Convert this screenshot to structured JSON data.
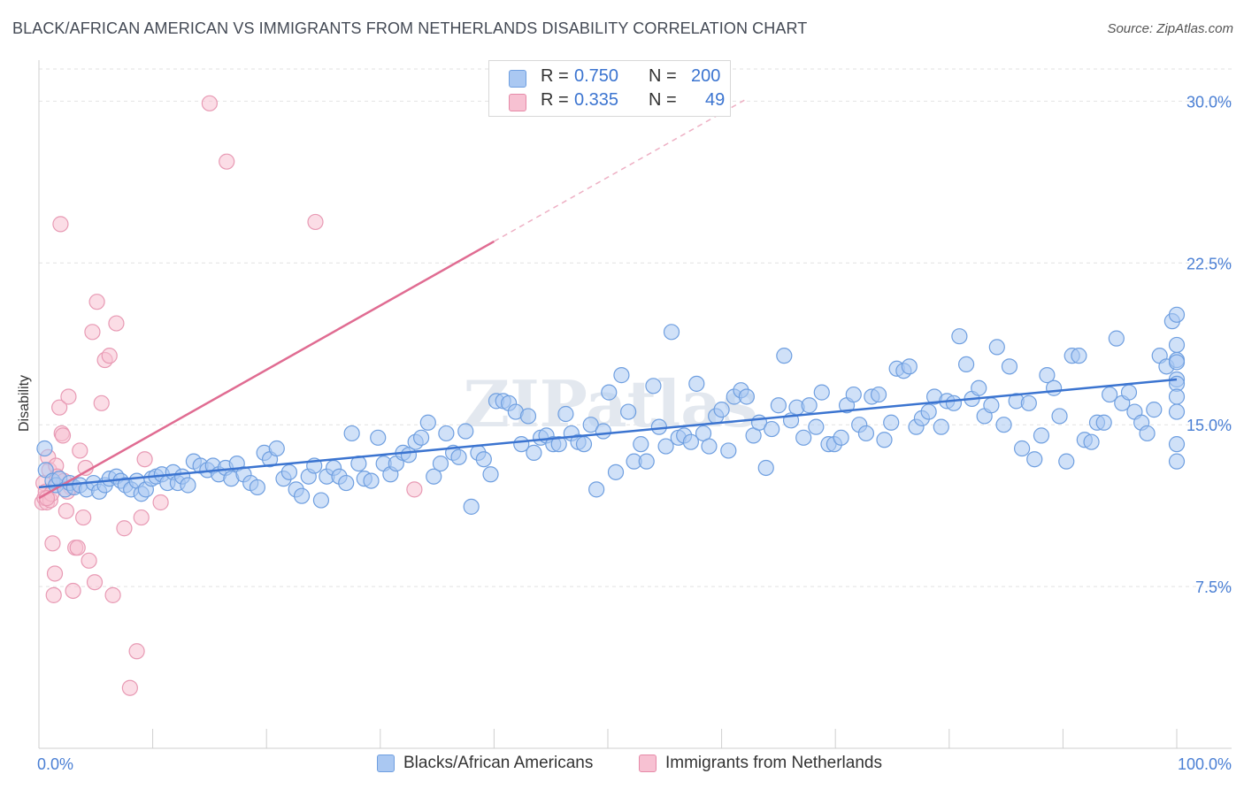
{
  "header": {
    "title": "BLACK/AFRICAN AMERICAN VS IMMIGRANTS FROM NETHERLANDS DISABILITY CORRELATION CHART",
    "source": "Source: ZipAtlas.com"
  },
  "legend": {
    "rows": [
      {
        "r_label": "R =",
        "r_value": "0.750",
        "n_label": "N =",
        "n_value": "200",
        "color": "#aac8f2",
        "border": "#6f9fe0"
      },
      {
        "r_label": "R =",
        "r_value": "0.335",
        "n_label": "N =",
        "n_value": "49",
        "color": "#f7c1d2",
        "border": "#e68aa8"
      }
    ]
  },
  "bottom_legend": [
    {
      "label": "Blacks/African Americans",
      "color": "#aac8f2",
      "border": "#6f9fe0"
    },
    {
      "label": "Immigrants from Netherlands",
      "color": "#f7c1d2",
      "border": "#e68aa8"
    }
  ],
  "chart_data": {
    "type": "scatter",
    "title": "BLACK/AFRICAN AMERICAN VS IMMIGRANTS FROM NETHERLANDS DISABILITY CORRELATION CHART",
    "xlabel": "",
    "ylabel": "Disability",
    "xlim": [
      0,
      100
    ],
    "ylim": [
      0,
      31
    ],
    "x_tick_labels": [
      "0.0%",
      "100.0%"
    ],
    "y_ticks": [
      7.5,
      15.0,
      22.5,
      30.0
    ],
    "y_tick_labels": [
      "7.5%",
      "15.0%",
      "22.5%",
      "30.0%"
    ],
    "grid": "horizontal dashed",
    "watermark": "ZIPatlas",
    "colors": {
      "blue": "#3b74d0",
      "pink": "#e06c92",
      "blue_fill": "#aac8f2",
      "pink_fill": "#f7c1d2"
    },
    "series": [
      {
        "name": "Blacks/African Americans",
        "r": 0.75,
        "n": 200,
        "trend": {
          "x0": 0,
          "y0": 12.1,
          "x1": 100,
          "y1": 17.1
        },
        "points": [
          [
            0.5,
            13.9
          ],
          [
            0.6,
            12.9
          ],
          [
            1.2,
            12.4
          ],
          [
            1.5,
            12.2
          ],
          [
            1.8,
            12.5
          ],
          [
            2.3,
            12.0
          ],
          [
            2.7,
            12.3
          ],
          [
            3.1,
            12.1
          ],
          [
            3.6,
            12.2
          ],
          [
            4.2,
            12.0
          ],
          [
            4.8,
            12.3
          ],
          [
            5.3,
            11.9
          ],
          [
            5.8,
            12.2
          ],
          [
            6.2,
            12.5
          ],
          [
            6.8,
            12.6
          ],
          [
            7.2,
            12.4
          ],
          [
            7.6,
            12.2
          ],
          [
            8.1,
            12.0
          ],
          [
            8.6,
            12.4
          ],
          [
            9.0,
            11.8
          ],
          [
            9.4,
            12.0
          ],
          [
            9.9,
            12.5
          ],
          [
            10.3,
            12.6
          ],
          [
            10.8,
            12.7
          ],
          [
            11.3,
            12.3
          ],
          [
            11.8,
            12.8
          ],
          [
            12.2,
            12.3
          ],
          [
            12.6,
            12.6
          ],
          [
            13.1,
            12.2
          ],
          [
            13.6,
            13.3
          ],
          [
            14.2,
            13.1
          ],
          [
            14.8,
            12.9
          ],
          [
            15.3,
            13.1
          ],
          [
            15.8,
            12.7
          ],
          [
            16.4,
            13.0
          ],
          [
            16.9,
            12.5
          ],
          [
            17.4,
            13.2
          ],
          [
            18.0,
            12.7
          ],
          [
            18.6,
            12.3
          ],
          [
            19.2,
            12.1
          ],
          [
            19.8,
            13.7
          ],
          [
            20.3,
            13.4
          ],
          [
            20.9,
            13.9
          ],
          [
            21.5,
            12.5
          ],
          [
            22.0,
            12.8
          ],
          [
            22.6,
            12.0
          ],
          [
            23.1,
            11.7
          ],
          [
            23.7,
            12.6
          ],
          [
            24.2,
            13.1
          ],
          [
            24.8,
            11.5
          ],
          [
            25.3,
            12.6
          ],
          [
            25.9,
            13.0
          ],
          [
            26.4,
            12.6
          ],
          [
            27.0,
            12.3
          ],
          [
            27.5,
            14.6
          ],
          [
            28.1,
            13.2
          ],
          [
            28.6,
            12.5
          ],
          [
            29.2,
            12.4
          ],
          [
            29.8,
            14.4
          ],
          [
            30.3,
            13.2
          ],
          [
            30.9,
            12.7
          ],
          [
            31.4,
            13.2
          ],
          [
            32.0,
            13.7
          ],
          [
            32.5,
            13.6
          ],
          [
            33.1,
            14.2
          ],
          [
            33.6,
            14.4
          ],
          [
            34.2,
            15.1
          ],
          [
            34.7,
            12.6
          ],
          [
            35.3,
            13.2
          ],
          [
            35.8,
            14.6
          ],
          [
            36.4,
            13.7
          ],
          [
            36.9,
            13.5
          ],
          [
            37.5,
            14.7
          ],
          [
            38.0,
            11.2
          ],
          [
            38.6,
            13.7
          ],
          [
            39.1,
            13.4
          ],
          [
            39.7,
            12.7
          ],
          [
            40.2,
            16.1
          ],
          [
            40.8,
            16.1
          ],
          [
            41.3,
            16.0
          ],
          [
            41.9,
            15.6
          ],
          [
            42.4,
            14.1
          ],
          [
            43.0,
            15.4
          ],
          [
            43.5,
            13.7
          ],
          [
            44.1,
            14.4
          ],
          [
            44.6,
            14.5
          ],
          [
            45.2,
            14.1
          ],
          [
            45.7,
            14.1
          ],
          [
            46.3,
            15.5
          ],
          [
            46.8,
            14.6
          ],
          [
            47.4,
            14.2
          ],
          [
            47.9,
            14.1
          ],
          [
            48.5,
            15.0
          ],
          [
            49.0,
            12.0
          ],
          [
            49.6,
            14.7
          ],
          [
            50.1,
            16.5
          ],
          [
            50.7,
            12.8
          ],
          [
            51.2,
            17.3
          ],
          [
            51.8,
            15.6
          ],
          [
            52.3,
            13.3
          ],
          [
            52.9,
            14.1
          ],
          [
            53.4,
            13.3
          ],
          [
            54.0,
            16.8
          ],
          [
            54.5,
            14.9
          ],
          [
            55.1,
            14.0
          ],
          [
            55.6,
            19.3
          ],
          [
            56.2,
            14.4
          ],
          [
            56.7,
            14.5
          ],
          [
            57.3,
            14.2
          ],
          [
            57.8,
            16.9
          ],
          [
            58.4,
            14.6
          ],
          [
            58.9,
            14.0
          ],
          [
            59.5,
            15.4
          ],
          [
            60.0,
            15.7
          ],
          [
            60.6,
            13.8
          ],
          [
            61.1,
            16.3
          ],
          [
            61.7,
            16.6
          ],
          [
            62.2,
            16.3
          ],
          [
            62.8,
            14.5
          ],
          [
            63.3,
            15.1
          ],
          [
            63.9,
            13.0
          ],
          [
            64.4,
            14.8
          ],
          [
            65.0,
            15.9
          ],
          [
            65.5,
            18.2
          ],
          [
            66.1,
            15.2
          ],
          [
            66.6,
            15.8
          ],
          [
            67.2,
            14.4
          ],
          [
            67.7,
            15.9
          ],
          [
            68.3,
            14.9
          ],
          [
            68.8,
            16.5
          ],
          [
            69.4,
            14.1
          ],
          [
            69.9,
            14.1
          ],
          [
            70.5,
            14.4
          ],
          [
            71.0,
            15.9
          ],
          [
            71.6,
            16.4
          ],
          [
            72.1,
            15.0
          ],
          [
            72.7,
            14.6
          ],
          [
            73.2,
            16.3
          ],
          [
            73.8,
            16.4
          ],
          [
            74.3,
            14.3
          ],
          [
            74.9,
            15.1
          ],
          [
            75.4,
            17.6
          ],
          [
            76.0,
            17.5
          ],
          [
            76.5,
            17.7
          ],
          [
            77.1,
            14.9
          ],
          [
            77.6,
            15.3
          ],
          [
            78.2,
            15.6
          ],
          [
            78.7,
            16.3
          ],
          [
            79.3,
            14.9
          ],
          [
            79.8,
            16.1
          ],
          [
            80.4,
            16.0
          ],
          [
            80.9,
            19.1
          ],
          [
            81.5,
            17.8
          ],
          [
            82.0,
            16.2
          ],
          [
            82.6,
            16.7
          ],
          [
            83.1,
            15.4
          ],
          [
            83.7,
            15.9
          ],
          [
            84.2,
            18.6
          ],
          [
            84.8,
            15.0
          ],
          [
            85.3,
            17.7
          ],
          [
            85.9,
            16.1
          ],
          [
            86.4,
            13.9
          ],
          [
            87.0,
            16.0
          ],
          [
            87.5,
            13.4
          ],
          [
            88.1,
            14.5
          ],
          [
            88.6,
            17.3
          ],
          [
            89.2,
            16.7
          ],
          [
            89.7,
            15.4
          ],
          [
            90.3,
            13.3
          ],
          [
            90.8,
            18.2
          ],
          [
            91.4,
            18.2
          ],
          [
            91.9,
            14.3
          ],
          [
            92.5,
            14.2
          ],
          [
            93.0,
            15.1
          ],
          [
            93.6,
            15.1
          ],
          [
            94.1,
            16.4
          ],
          [
            94.7,
            19.0
          ],
          [
            95.2,
            16.0
          ],
          [
            95.8,
            16.5
          ],
          [
            96.3,
            15.6
          ],
          [
            96.9,
            15.1
          ],
          [
            97.4,
            14.6
          ],
          [
            98.0,
            15.7
          ],
          [
            98.5,
            18.2
          ],
          [
            99.1,
            17.7
          ],
          [
            99.6,
            19.8
          ],
          [
            100.0,
            18.0
          ],
          [
            100.0,
            17.1
          ],
          [
            100.0,
            16.9
          ],
          [
            100.0,
            20.1
          ],
          [
            100.0,
            17.9
          ],
          [
            100.0,
            16.3
          ],
          [
            100.0,
            14.1
          ],
          [
            100.0,
            13.3
          ],
          [
            100.0,
            18.7
          ],
          [
            100.0,
            15.6
          ]
        ]
      },
      {
        "name": "Immigrants from Netherlands",
        "r": 0.335,
        "n": 49,
        "trend": {
          "x0": 0,
          "y0": 11.6,
          "x1": 40,
          "y1": 23.5
        },
        "points": [
          [
            0.3,
            11.4
          ],
          [
            0.4,
            12.3
          ],
          [
            0.5,
            11.6
          ],
          [
            0.6,
            11.9
          ],
          [
            0.7,
            11.4
          ],
          [
            0.8,
            13.5
          ],
          [
            0.9,
            12.9
          ],
          [
            1.0,
            11.5
          ],
          [
            1.1,
            11.8
          ],
          [
            1.2,
            9.5
          ],
          [
            1.3,
            7.1
          ],
          [
            1.4,
            8.1
          ],
          [
            1.5,
            13.1
          ],
          [
            1.6,
            12.6
          ],
          [
            1.8,
            15.8
          ],
          [
            1.9,
            24.3
          ],
          [
            2.0,
            14.6
          ],
          [
            2.1,
            14.5
          ],
          [
            2.2,
            12.4
          ],
          [
            2.4,
            11.0
          ],
          [
            2.6,
            16.3
          ],
          [
            2.8,
            12.1
          ],
          [
            3.0,
            7.3
          ],
          [
            3.2,
            9.3
          ],
          [
            3.4,
            9.3
          ],
          [
            3.6,
            13.8
          ],
          [
            3.9,
            10.7
          ],
          [
            4.1,
            13.0
          ],
          [
            4.4,
            8.7
          ],
          [
            4.7,
            19.3
          ],
          [
            4.9,
            7.7
          ],
          [
            5.1,
            20.7
          ],
          [
            5.5,
            16.0
          ],
          [
            5.8,
            18.0
          ],
          [
            6.2,
            18.2
          ],
          [
            6.5,
            7.1
          ],
          [
            6.8,
            19.7
          ],
          [
            7.5,
            10.2
          ],
          [
            8.0,
            2.8
          ],
          [
            8.6,
            4.5
          ],
          [
            9.0,
            10.7
          ],
          [
            9.3,
            13.4
          ],
          [
            10.7,
            11.4
          ],
          [
            15.0,
            29.9
          ],
          [
            16.5,
            27.2
          ],
          [
            24.3,
            24.4
          ],
          [
            33.0,
            12.0
          ],
          [
            2.5,
            11.9
          ],
          [
            0.7,
            11.6
          ]
        ]
      }
    ]
  }
}
